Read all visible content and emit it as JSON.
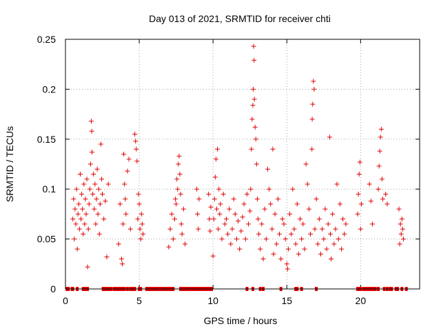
{
  "chart_data": {
    "type": "scatter",
    "title": "Day 013 of 2021, SRMTID for receiver chti",
    "xlabel": "GPS time / hours",
    "ylabel": "SRMTID / TECUs",
    "xlim": [
      0,
      24
    ],
    "ylim": [
      0,
      0.25
    ],
    "xticks": [
      0,
      5,
      10,
      15,
      20
    ],
    "yticks": [
      0,
      0.05,
      0.1,
      0.15,
      0.2,
      0.25
    ],
    "xtick_labels": [
      "0",
      "5",
      "10",
      "15",
      "20"
    ],
    "ytick_labels": [
      "0",
      "0.05",
      "0.1",
      "0.15",
      "0.2",
      "0.25"
    ],
    "grid": true,
    "color": "#e00000",
    "marker": "plus",
    "series": [
      {
        "name": "SRMTID",
        "points": [
          [
            0.5,
            0.07
          ],
          [
            0.55,
            0.09
          ],
          [
            0.6,
            0.05
          ],
          [
            0.65,
            0.08
          ],
          [
            0.7,
            0.065
          ],
          [
            0.75,
            0.1
          ],
          [
            0.8,
            0.04
          ],
          [
            0.85,
            0.075
          ],
          [
            0.9,
            0.085
          ],
          [
            0.95,
            0.06
          ],
          [
            1.0,
            0.115
          ],
          [
            1.05,
            0.07
          ],
          [
            1.1,
            0.095
          ],
          [
            1.15,
            0.08
          ],
          [
            1.2,
            0.055
          ],
          [
            1.25,
            0.105
          ],
          [
            1.3,
            0.065
          ],
          [
            1.35,
            0.09
          ],
          [
            1.4,
            0.075
          ],
          [
            1.45,
            0.11
          ],
          [
            1.5,
            0.022
          ],
          [
            1.55,
            0.06
          ],
          [
            1.6,
            0.085
          ],
          [
            1.65,
            0.1
          ],
          [
            1.7,
            0.125
          ],
          [
            1.75,
            0.168
          ],
          [
            1.78,
            0.158
          ],
          [
            1.8,
            0.137
          ],
          [
            1.85,
            0.095
          ],
          [
            1.9,
            0.115
          ],
          [
            1.95,
            0.08
          ],
          [
            2.0,
            0.105
          ],
          [
            2.05,
            0.065
          ],
          [
            2.1,
            0.09
          ],
          [
            2.15,
            0.12
          ],
          [
            2.2,
            0.075
          ],
          [
            2.25,
            0.1
          ],
          [
            2.3,
            0.055
          ],
          [
            2.35,
            0.085
          ],
          [
            2.4,
            0.145
          ],
          [
            2.45,
            0.11
          ],
          [
            2.5,
            0.095
          ],
          [
            2.6,
            0.07
          ],
          [
            2.7,
            0.088
          ],
          [
            2.8,
            0.032
          ],
          [
            2.9,
            0.105
          ],
          [
            3.6,
            0.045
          ],
          [
            3.7,
            0.085
          ],
          [
            3.8,
            0.03
          ],
          [
            3.85,
            0.025
          ],
          [
            3.9,
            0.065
          ],
          [
            3.95,
            0.135
          ],
          [
            4.0,
            0.105
          ],
          [
            4.05,
            0.09
          ],
          [
            4.1,
            0.075
          ],
          [
            4.2,
            0.118
          ],
          [
            4.3,
            0.13
          ],
          [
            4.4,
            0.06
          ],
          [
            4.7,
            0.155
          ],
          [
            4.75,
            0.148
          ],
          [
            4.8,
            0.14
          ],
          [
            4.85,
            0.128
          ],
          [
            4.9,
            0.07
          ],
          [
            4.95,
            0.095
          ],
          [
            5.0,
            0.085
          ],
          [
            5.05,
            0.06
          ],
          [
            5.1,
            0.05
          ],
          [
            5.15,
            0.075
          ],
          [
            5.2,
            0.065
          ],
          [
            5.25,
            0.055
          ],
          [
            7.0,
            0.042
          ],
          [
            7.1,
            0.06
          ],
          [
            7.2,
            0.075
          ],
          [
            7.3,
            0.05
          ],
          [
            7.4,
            0.07
          ],
          [
            7.45,
            0.09
          ],
          [
            7.5,
            0.085
          ],
          [
            7.55,
            0.11
          ],
          [
            7.6,
            0.1
          ],
          [
            7.65,
            0.125
          ],
          [
            7.7,
            0.133
          ],
          [
            7.75,
            0.115
          ],
          [
            7.8,
            0.095
          ],
          [
            7.85,
            0.065
          ],
          [
            7.9,
            0.055
          ],
          [
            8.0,
            0.08
          ],
          [
            8.1,
            0.045
          ],
          [
            8.9,
            0.1
          ],
          [
            8.95,
            0.075
          ],
          [
            9.0,
            0.06
          ],
          [
            9.05,
            0.09
          ],
          [
            9.7,
            0.095
          ],
          [
            9.75,
            0.07
          ],
          [
            9.8,
            0.058
          ],
          [
            9.85,
            0.082
          ],
          [
            10.0,
            0.033
          ],
          [
            10.05,
            0.07
          ],
          [
            10.1,
            0.09
          ],
          [
            10.15,
            0.112
          ],
          [
            10.2,
            0.13
          ],
          [
            10.25,
            0.08
          ],
          [
            10.3,
            0.14
          ],
          [
            10.35,
            0.06
          ],
          [
            10.4,
            0.1
          ],
          [
            10.45,
            0.075
          ],
          [
            10.5,
            0.085
          ],
          [
            10.6,
            0.05
          ],
          [
            10.7,
            0.095
          ],
          [
            10.8,
            0.065
          ],
          [
            10.9,
            0.07
          ],
          [
            11.0,
            0.055
          ],
          [
            11.1,
            0.08
          ],
          [
            11.2,
            0.045
          ],
          [
            11.3,
            0.06
          ],
          [
            11.4,
            0.09
          ],
          [
            11.5,
            0.075
          ],
          [
            11.6,
            0.05
          ],
          [
            11.7,
            0.068
          ],
          [
            11.8,
            0.04
          ],
          [
            11.9,
            0.058
          ],
          [
            12.0,
            0.072
          ],
          [
            12.1,
            0.085
          ],
          [
            12.2,
            0.05
          ],
          [
            12.3,
            0.095
          ],
          [
            12.4,
            0.065
          ],
          [
            12.5,
            0.078
          ],
          [
            12.55,
            0.1
          ],
          [
            12.6,
            0.14
          ],
          [
            12.65,
            0.17
          ],
          [
            12.7,
            0.184
          ],
          [
            12.72,
            0.2
          ],
          [
            12.75,
            0.243
          ],
          [
            12.78,
            0.229
          ],
          [
            12.8,
            0.19
          ],
          [
            12.85,
            0.162
          ],
          [
            12.9,
            0.15
          ],
          [
            12.95,
            0.125
          ],
          [
            13.0,
            0.09
          ],
          [
            13.05,
            0.07
          ],
          [
            13.1,
            0.055
          ],
          [
            13.2,
            0.04
          ],
          [
            13.3,
            0.065
          ],
          [
            13.4,
            0.03
          ],
          [
            13.5,
            0.08
          ],
          [
            13.6,
            0.05
          ],
          [
            13.7,
            0.12
          ],
          [
            13.8,
            0.1
          ],
          [
            13.9,
            0.085
          ],
          [
            14.0,
            0.06
          ],
          [
            14.05,
            0.14
          ],
          [
            14.1,
            0.035
          ],
          [
            14.2,
            0.075
          ],
          [
            14.3,
            0.045
          ],
          [
            14.4,
            0.09
          ],
          [
            14.5,
            0.055
          ],
          [
            14.6,
            0.03
          ],
          [
            14.7,
            0.07
          ],
          [
            14.8,
            0.065
          ],
          [
            14.9,
            0.05
          ],
          [
            15.0,
            0.025
          ],
          [
            15.05,
            0.02
          ],
          [
            15.1,
            0.04
          ],
          [
            15.2,
            0.075
          ],
          [
            15.3,
            0.055
          ],
          [
            15.4,
            0.1
          ],
          [
            15.5,
            0.06
          ],
          [
            15.6,
            0.045
          ],
          [
            15.7,
            0.085
          ],
          [
            15.8,
            0.035
          ],
          [
            15.9,
            0.07
          ],
          [
            16.0,
            0.05
          ],
          [
            16.1,
            0.065
          ],
          [
            16.2,
            0.04
          ],
          [
            16.3,
            0.125
          ],
          [
            16.4,
            0.105
          ],
          [
            16.5,
            0.08
          ],
          [
            16.6,
            0.055
          ],
          [
            16.7,
            0.14
          ],
          [
            16.72,
            0.17
          ],
          [
            16.75,
            0.185
          ],
          [
            16.8,
            0.208
          ],
          [
            16.85,
            0.2
          ],
          [
            16.9,
            0.06
          ],
          [
            17.0,
            0.09
          ],
          [
            17.1,
            0.045
          ],
          [
            17.2,
            0.07
          ],
          [
            17.3,
            0.035
          ],
          [
            17.4,
            0.06
          ],
          [
            17.5,
            0.05
          ],
          [
            17.6,
            0.08
          ],
          [
            17.7,
            0.04
          ],
          [
            17.8,
            0.065
          ],
          [
            17.9,
            0.152
          ],
          [
            17.95,
            0.055
          ],
          [
            18.0,
            0.03
          ],
          [
            18.1,
            0.075
          ],
          [
            18.2,
            0.045
          ],
          [
            18.3,
            0.06
          ],
          [
            18.4,
            0.105
          ],
          [
            18.5,
            0.05
          ],
          [
            18.6,
            0.085
          ],
          [
            18.7,
            0.04
          ],
          [
            18.8,
            0.07
          ],
          [
            18.9,
            0.055
          ],
          [
            19.0,
            0.065
          ],
          [
            19.8,
            0.075
          ],
          [
            19.85,
            0.095
          ],
          [
            19.9,
            0.115
          ],
          [
            19.95,
            0.127
          ],
          [
            20.0,
            0.06
          ],
          [
            20.05,
            0.085
          ],
          [
            20.6,
            0.105
          ],
          [
            20.7,
            0.088
          ],
          [
            20.8,
            0.065
          ],
          [
            21.2,
            0.1
          ],
          [
            21.25,
            0.123
          ],
          [
            21.3,
            0.138
          ],
          [
            21.35,
            0.152
          ],
          [
            21.4,
            0.16
          ],
          [
            21.45,
            0.11
          ],
          [
            21.5,
            0.09
          ],
          [
            21.7,
            0.095
          ],
          [
            21.8,
            0.085
          ],
          [
            22.6,
            0.08
          ],
          [
            22.65,
            0.045
          ],
          [
            22.7,
            0.065
          ],
          [
            22.75,
            0.055
          ],
          [
            22.8,
            0.07
          ],
          [
            22.85,
            0.06
          ],
          [
            22.9,
            0.05
          ]
        ]
      }
    ],
    "zero_points_x": [
      0.1,
      0.2,
      0.45,
      0.5,
      0.8,
      1.2,
      1.3,
      1.45,
      1.5,
      2.55,
      2.7,
      2.8,
      2.9,
      3.0,
      3.1,
      3.3,
      3.4,
      3.5,
      3.6,
      3.7,
      3.8,
      3.9,
      4.0,
      4.2,
      4.4,
      4.5,
      4.6,
      4.7,
      5.0,
      5.1,
      5.5,
      5.6,
      5.7,
      5.8,
      5.9,
      6.0,
      6.1,
      6.2,
      6.3,
      6.4,
      6.5,
      6.6,
      6.7,
      6.8,
      6.9,
      7.0,
      7.1,
      7.2,
      7.3,
      7.8,
      7.9,
      8.0,
      8.1,
      8.2,
      8.3,
      8.4,
      8.5,
      8.6,
      8.7,
      8.8,
      8.9,
      9.0,
      9.1,
      9.2,
      9.3,
      9.4,
      9.5,
      9.6,
      9.7,
      9.8,
      9.9,
      12.3,
      12.7,
      13.2,
      13.4,
      14.6,
      15.6,
      15.7,
      16.0,
      17.0,
      19.8,
      19.9,
      20.0,
      20.2,
      20.3,
      20.4,
      20.5,
      20.6,
      20.7,
      20.8,
      20.9,
      21.0,
      21.2,
      21.6,
      21.8,
      22.0,
      22.1,
      22.4,
      22.5,
      22.8,
      23.1
    ]
  }
}
